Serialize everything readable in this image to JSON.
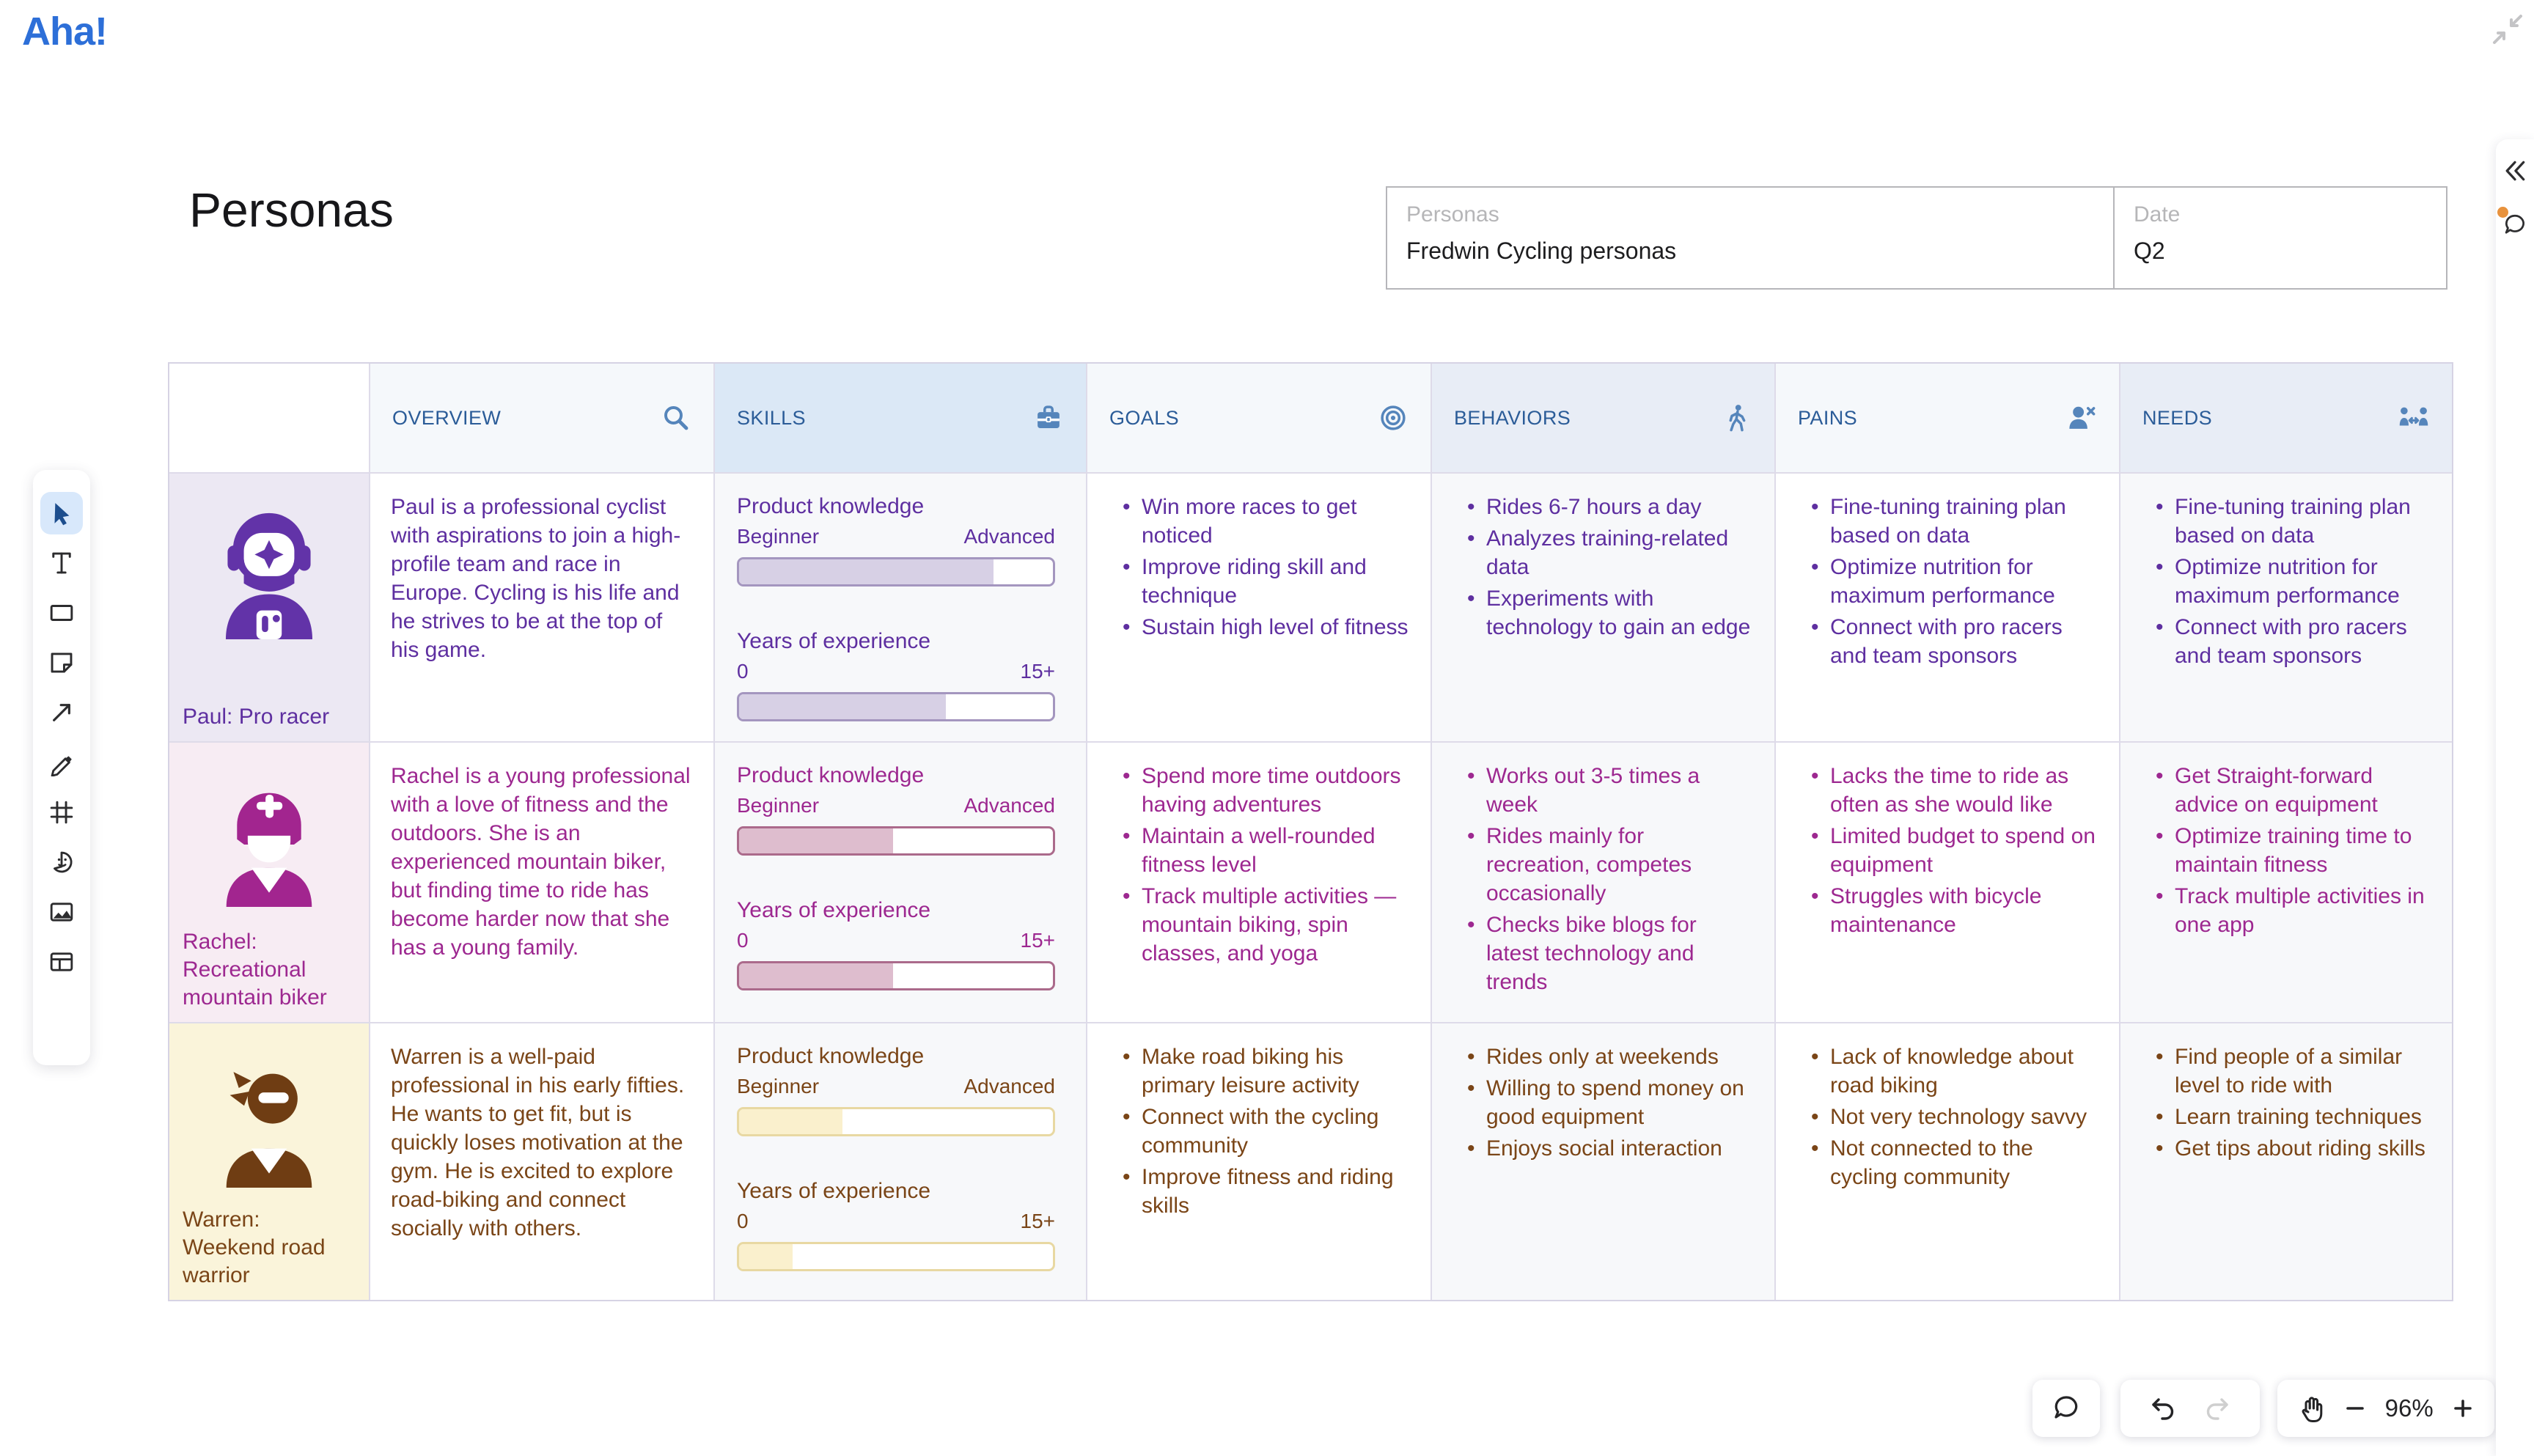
{
  "app": {
    "logo_text": "Aha!"
  },
  "board": {
    "title": "Personas"
  },
  "fields": {
    "personas": {
      "label": "Personas",
      "value": "Fredwin Cycling personas"
    },
    "date": {
      "label": "Date",
      "value": "Q2"
    }
  },
  "table": {
    "columns": [
      {
        "label": "OVERVIEW",
        "icon": "magnifier-icon"
      },
      {
        "label": "SKILLS",
        "icon": "briefcase-icon"
      },
      {
        "label": "GOALS",
        "icon": "target-icon"
      },
      {
        "label": "BEHAVIORS",
        "icon": "walking-person-icon"
      },
      {
        "label": "PAINS",
        "icon": "person-x-icon"
      },
      {
        "label": "NEEDS",
        "icon": "people-arrows-icon"
      }
    ],
    "skills_scale": {
      "product_knowledge": "Product knowledge",
      "beginner": "Beginner",
      "advanced": "Advanced",
      "years_of_experience": "Years of experience",
      "min": "0",
      "max": "15+"
    },
    "personas": [
      {
        "name": "Paul: Pro racer",
        "colors": {
          "text": "#5e2fa0",
          "background": "#ece8f3",
          "bar_fill": "#d7d0e5",
          "bar_border": "#a496bf",
          "avatar": "#6233a8"
        },
        "overview": "Paul is a professional cyclist with aspirations to join a high-profile team and race in Europe. Cycling is his life and he strives to be at the top of his game.",
        "skills": {
          "product_knowledge_pct": 81,
          "years_experience_pct": 66
        },
        "goals": [
          "Win more races to get noticed",
          "Improve riding skill and technique",
          "Sustain high level of fitness"
        ],
        "behaviors": [
          "Rides 6-7 hours a day",
          "Analyzes training-related data",
          "Experiments with technology to gain an edge"
        ],
        "pains": [
          "Fine-tuning training plan based on data",
          "Optimize nutrition for maximum performance",
          "Connect with pro racers and team sponsors"
        ],
        "needs": [
          "Fine-tuning training plan based on data",
          "Optimize nutrition for maximum performance",
          "Connect with pro racers and team sponsors"
        ]
      },
      {
        "name": "Rachel: Recreational mountain biker",
        "colors": {
          "text": "#9d2890",
          "background": "#f7ecf3",
          "bar_fill": "#debdce",
          "bar_border": "#ab6a8b",
          "avatar": "#a2258f"
        },
        "overview": "Rachel is a young professional with a love of fitness and the outdoors. She is an experienced mountain biker, but finding time to ride has become harder now that she has a young family.",
        "skills": {
          "product_knowledge_pct": 49,
          "years_experience_pct": 49
        },
        "goals": [
          "Spend more time outdoors having adventures",
          "Maintain a well-rounded fitness level",
          "Track multiple activities — mountain biking, spin classes, and yoga"
        ],
        "behaviors": [
          "Works out 3-5 times a week",
          "Rides mainly for recreation, competes occasionally",
          "Checks bike blogs for latest technology and trends"
        ],
        "pains": [
          "Lacks the time to ride as often as she would like",
          "Limited budget to spend on equipment",
          "Struggles with bicycle maintenance"
        ],
        "needs": [
          "Get Straight-forward advice on equipment",
          "Optimize training time to maintain fitness",
          "Track multiple activities in one app"
        ]
      },
      {
        "name": "Warren: Weekend road warrior",
        "colors": {
          "text": "#7a4517",
          "background": "#faf4da",
          "bar_fill": "#faf0cd",
          "bar_border": "#e8d8a2",
          "avatar": "#6f3d13"
        },
        "overview": "Warren is a well-paid professional in his early fifties. He wants to get fit, but is quickly loses motivation at the gym. He is excited to explore road-biking and connect socially with others.",
        "skills": {
          "product_knowledge_pct": 33,
          "years_experience_pct": 17
        },
        "goals": [
          "Make road biking his primary leisure activity",
          "Connect with the cycling community",
          "Improve fitness and riding skills"
        ],
        "behaviors": [
          "Rides only at weekends",
          "Willing to spend money on good equipment",
          "Enjoys social interaction"
        ],
        "pains": [
          "Lack of knowledge about road biking",
          "Not very technology savvy",
          "Not connected to the cycling community"
        ],
        "needs": [
          "Find people of a similar level to ride with",
          "Learn training techniques",
          "Get tips about riding skills"
        ]
      }
    ]
  },
  "toolbar": {
    "items": [
      {
        "name": "select-tool",
        "selected": true
      },
      {
        "name": "text-tool"
      },
      {
        "name": "shape-tool"
      },
      {
        "name": "sticky-note-tool"
      },
      {
        "name": "arrow-tool"
      },
      {
        "name": "pen-tool"
      },
      {
        "name": "frame-tool"
      },
      {
        "name": "sticker-tool"
      },
      {
        "name": "image-tool"
      },
      {
        "name": "template-tool"
      }
    ]
  },
  "controls": {
    "zoom_out": "−",
    "zoom_level": "96%",
    "zoom_in": "+"
  },
  "right_rail": {
    "notification_dot_color": "#e8923d"
  }
}
